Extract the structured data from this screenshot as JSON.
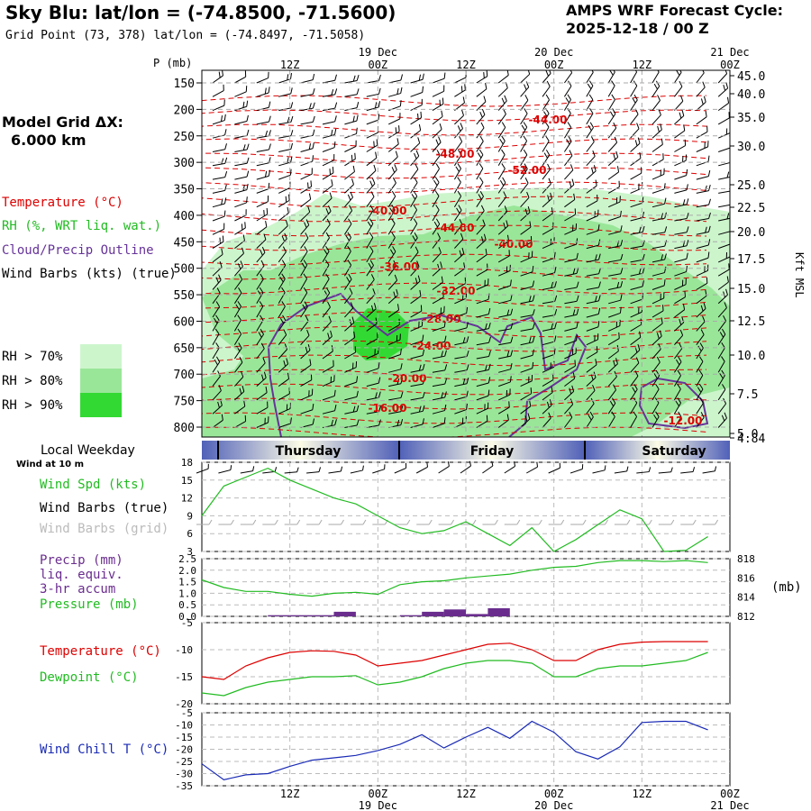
{
  "header": {
    "title": "Sky Blu:  lat/lon = (-74.8500, -71.5600)",
    "grid_point": "Grid Point (73, 378) lat/lon = (-74.8497, -71.5058)",
    "forecast_label": "AMPS WRF Forecast Cycle:",
    "cycle": "2025-12-18 / 00  Z"
  },
  "grid_dx": {
    "label": "Model Grid ΔX:",
    "value": "6.000 km"
  },
  "legend": {
    "temperature": "Temperature (°C)",
    "rh": "RH (%, WRT liq. wat.)",
    "cloud": "Cloud/Precip Outline",
    "wind": "Wind Barbs (kts) (true)",
    "rh70": "RH > 70%",
    "rh80": "RH > 80%",
    "rh90": "RH > 90%",
    "colors": {
      "rh70": "#ccf5cc",
      "rh80": "#99e699",
      "rh90": "#33d933",
      "temperature": "#dd0000",
      "cloud": "#663399",
      "wind": "#000000"
    }
  },
  "chart_data": [
    {
      "type": "heatmap",
      "title": "",
      "ylabel": "P (mb)",
      "y2label": "Kft MSL",
      "time_top": {
        "ticks": [
          "12Z",
          "00Z",
          "12Z",
          "00Z",
          "12Z",
          "00Z"
        ],
        "dates": [
          "19 Dec",
          "20 Dec",
          "21 Dec"
        ]
      },
      "pressure_ticks": [
        150,
        200,
        250,
        300,
        350,
        400,
        450,
        500,
        550,
        600,
        650,
        700,
        750,
        800
      ],
      "height_ticks": [
        "45.0",
        "40.0",
        "35.0",
        "30.0",
        "25.0",
        "22.5",
        "20.0",
        "17.5",
        "15.0",
        "12.5",
        "10.0",
        "7.5",
        "5.0",
        "4.84"
      ],
      "temperature_labels": [
        "-44.00",
        "-48.00",
        "-52.00",
        "-40.00",
        "-44.00",
        "-40.00",
        "-36.00",
        "-32.00",
        "-28.00",
        "-24.00",
        "-20.00",
        "-16.00",
        "-12.00"
      ]
    },
    {
      "type": "line",
      "title": "Local Weekday",
      "subtitle": "Wind at 10 m",
      "days": [
        "Thursday",
        "Friday",
        "Saturday"
      ],
      "series": [
        {
          "name": "Wind Spd (kts)",
          "color": "#22bb22",
          "x": [
            0,
            3,
            6,
            9,
            12,
            15,
            18,
            21,
            24,
            27,
            30,
            33,
            36,
            39,
            42,
            45,
            48,
            51,
            54,
            57,
            60,
            63,
            66,
            69
          ],
          "values": [
            9,
            14,
            15.5,
            17,
            15,
            13.5,
            12,
            11,
            9,
            7,
            6,
            6.5,
            8,
            6,
            4,
            7,
            3,
            5,
            7.5,
            10,
            8.5,
            3,
            3.2,
            5.5
          ]
        }
      ],
      "ylim": [
        3,
        18
      ],
      "y_ticks": [
        18,
        15,
        12,
        9,
        6,
        3
      ],
      "labels": {
        "wind_spd": "Wind Spd (kts)",
        "barbs_true": "Wind Barbs (true)",
        "barbs_grid": "Wind Barbs (grid)"
      }
    },
    {
      "type": "bar",
      "series": [
        {
          "name": "Precip (mm) liq. equiv. 3-hr accum",
          "color": "#6a2d8e",
          "x": [
            9,
            12,
            15,
            18,
            27,
            30,
            33,
            36,
            39
          ],
          "values": [
            0.05,
            0.05,
            0.05,
            0.2,
            0.05,
            0.2,
            0.3,
            0.1,
            0.35
          ]
        },
        {
          "name": "Pressure (mb)",
          "color": "#22bb22",
          "x": [
            0,
            3,
            6,
            9,
            12,
            15,
            18,
            21,
            24,
            27,
            30,
            33,
            36,
            39,
            42,
            45,
            48,
            51,
            54,
            57,
            60,
            63,
            66,
            69
          ],
          "values": [
            815.8,
            815,
            814.6,
            814.6,
            814.3,
            814.1,
            814.4,
            814.5,
            814.3,
            815.3,
            815.6,
            815.7,
            816,
            816.2,
            816.4,
            816.8,
            817.1,
            817.2,
            817.6,
            817.8,
            817.8,
            817.7,
            817.8,
            817.6
          ]
        }
      ],
      "ylim": [
        0,
        2.5
      ],
      "y_ticks": [
        "2.5",
        "2.0",
        "1.5",
        "1.0",
        "0.5",
        "0.0"
      ],
      "y2_ticks": [
        "818",
        "816",
        "814",
        "812"
      ],
      "y2label": "(mb)",
      "labels": {
        "precip": "Precip (mm)",
        "liq": "liq. equiv.",
        "accum": "3-hr accum",
        "pressure": "Pressure (mb)"
      }
    },
    {
      "type": "line",
      "series": [
        {
          "name": "Temperature (°C)",
          "color": "#dd0000",
          "x": [
            0,
            3,
            6,
            9,
            12,
            15,
            18,
            21,
            24,
            27,
            30,
            33,
            36,
            39,
            42,
            45,
            48,
            51,
            54,
            57,
            60,
            63,
            66,
            69
          ],
          "values": [
            -15,
            -15.5,
            -13,
            -11.5,
            -10.5,
            -10.2,
            -10.3,
            -11,
            -13,
            -12.5,
            -12,
            -11,
            -10,
            -9,
            -8.8,
            -10,
            -12,
            -12,
            -10,
            -9,
            -8.6,
            -8.5,
            -8.5,
            -8.5
          ]
        },
        {
          "name": "Dewpoint (°C)",
          "color": "#22bb22",
          "x": [
            0,
            3,
            6,
            9,
            12,
            15,
            18,
            21,
            24,
            27,
            30,
            33,
            36,
            39,
            42,
            45,
            48,
            51,
            54,
            57,
            60,
            63,
            66,
            69
          ],
          "values": [
            -18,
            -18.5,
            -17,
            -16,
            -15.5,
            -15,
            -15,
            -14.8,
            -16.5,
            -16,
            -15,
            -13.5,
            -12.5,
            -12,
            -12,
            -12.5,
            -15,
            -15,
            -13.5,
            -13,
            -13,
            -12.5,
            -12,
            -10.5
          ]
        }
      ],
      "ylim": [
        -20,
        -5
      ],
      "y_ticks": [
        "-5",
        "-10",
        "-15",
        "-20"
      ],
      "labels": {
        "temperature": "Temperature (°C)",
        "dewpoint": "Dewpoint (°C)"
      }
    },
    {
      "type": "line",
      "series": [
        {
          "name": "Wind Chill T (°C)",
          "color": "#1a2bb5",
          "x": [
            0,
            3,
            6,
            9,
            12,
            15,
            18,
            21,
            24,
            27,
            30,
            33,
            36,
            39,
            42,
            45,
            48,
            51,
            54,
            57,
            60,
            63,
            66,
            69
          ],
          "values": [
            -26,
            -32.5,
            -30.5,
            -30,
            -27,
            -24.5,
            -23.5,
            -22.5,
            -20.5,
            -18,
            -14,
            -19.5,
            -15,
            -11,
            -15.5,
            -8.5,
            -13,
            -21,
            -24,
            -19,
            -9,
            -8.5,
            -8.5,
            -12
          ]
        }
      ],
      "ylim": [
        -35,
        -5
      ],
      "y_ticks": [
        "-5",
        "-10",
        "-15",
        "-20",
        "-25",
        "-30",
        "-35"
      ],
      "x_ticks": [
        "12Z",
        "00Z",
        "12Z",
        "00Z",
        "12Z",
        "00Z"
      ],
      "x_dates": [
        "19 Dec",
        "20 Dec",
        "21 Dec"
      ],
      "labels": {
        "windchill": "Wind Chill T (°C)"
      }
    }
  ]
}
